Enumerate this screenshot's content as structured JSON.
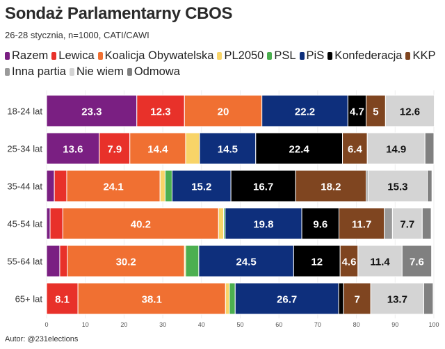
{
  "chart_data": {
    "type": "bar",
    "orientation": "horizontal",
    "stacked": true,
    "title": "Sondaż Parlamentarny CBOS",
    "subtitle": "26-28 stycznia, n=1000, CATI/CAWI",
    "source": "Autor: @231elections",
    "xlim": [
      0,
      100
    ],
    "xticks": [
      0,
      10,
      20,
      30,
      40,
      50,
      60,
      70,
      80,
      90,
      100
    ],
    "legend_placement": "top",
    "categories": [
      "18-24 lat",
      "25-34 lat",
      "35-44 lat",
      "45-54 lat",
      "55-64 lat",
      "65+ lat"
    ],
    "series": [
      {
        "name": "Razem",
        "color": "#7a1f82",
        "values": [
          23.3,
          13.6,
          2.0,
          0.9,
          3.4,
          0
        ]
      },
      {
        "name": "Lewica",
        "color": "#e8312a",
        "values": [
          12.3,
          7.9,
          3.2,
          3.3,
          2.0,
          8.1
        ]
      },
      {
        "name": "Koalicja Obywatelska",
        "color": "#f07032",
        "values": [
          20,
          14.4,
          24.1,
          40.2,
          30.2,
          38.1
        ]
      },
      {
        "name": "PL2050",
        "color": "#f8d468",
        "values": [
          0,
          3.6,
          1.3,
          1.3,
          0.3,
          1.0
        ]
      },
      {
        "name": "PSL",
        "color": "#4caf50",
        "values": [
          0,
          0,
          1.8,
          0.4,
          3.4,
          1.5
        ]
      },
      {
        "name": "PiS",
        "color": "#0e2f7c",
        "values": [
          22.2,
          14.5,
          15.2,
          19.8,
          24.5,
          26.7
        ]
      },
      {
        "name": "Konfederacja",
        "color": "#000000",
        "values": [
          4.7,
          22.4,
          16.7,
          9.6,
          12,
          1.3
        ]
      },
      {
        "name": "KKP",
        "color": "#7f4520",
        "values": [
          5,
          6.4,
          18.2,
          11.7,
          4.6,
          7
        ]
      },
      {
        "name": "Inna partia",
        "color": "#9a9a9a",
        "values": [
          0,
          0,
          0.5,
          2.1,
          0,
          0
        ]
      },
      {
        "name": "Nie wiem",
        "color": "#d4d4d4",
        "values": [
          12.6,
          14.9,
          15.3,
          7.7,
          11.4,
          13.7
        ]
      },
      {
        "name": "Odmowa",
        "color": "#808080",
        "values": [
          0,
          2.3,
          1.2,
          2.3,
          7.6,
          2.4
        ]
      }
    ],
    "labels_shown_min": 4.5
  }
}
